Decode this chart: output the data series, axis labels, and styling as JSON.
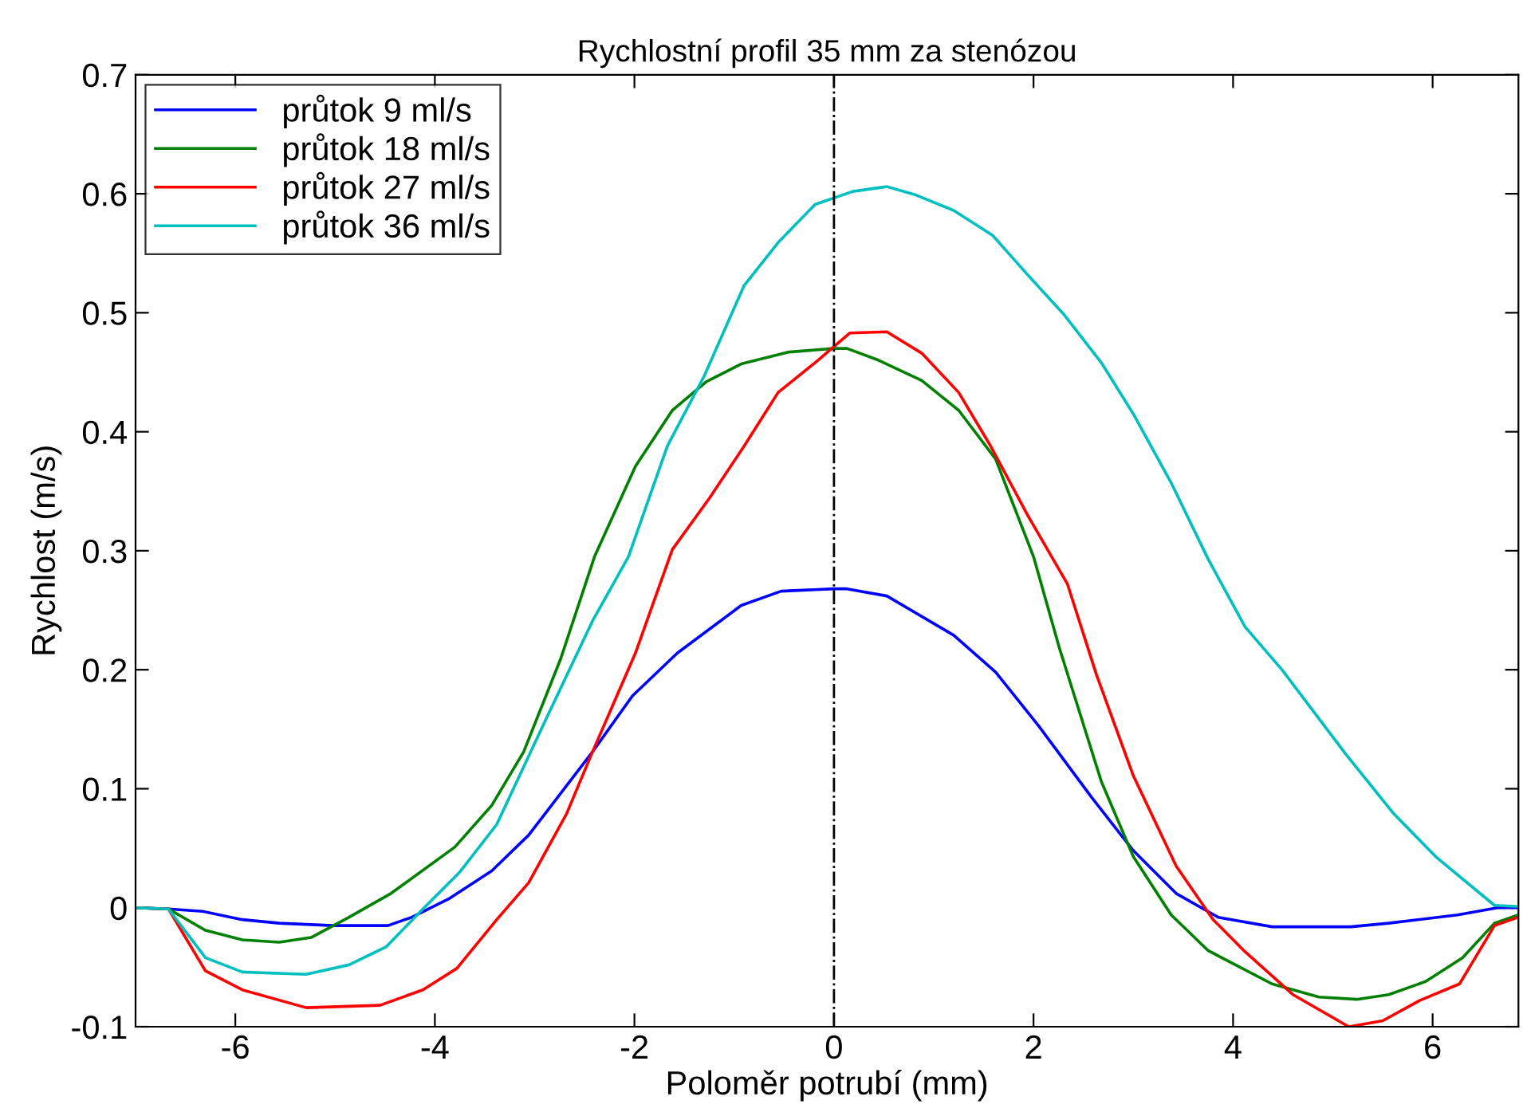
{
  "chart_data": {
    "type": "line",
    "title": "Rychlostní profil 35 mm za stenózou",
    "xlabel": "Poloměr potrubí (mm)",
    "ylabel": "Rychlost (m/s)",
    "xlim": [
      -7,
      6.86
    ],
    "ylim": [
      -0.1,
      0.7
    ],
    "xticks": [
      -6,
      -4,
      -2,
      0,
      2,
      4,
      6
    ],
    "yticks": [
      -0.1,
      0,
      0.1,
      0.2,
      0.3,
      0.4,
      0.5,
      0.6,
      0.7
    ],
    "grid": false,
    "legend": "top left",
    "line_style": "solid",
    "marker": "none",
    "ref_lines": [
      {
        "axis": "x",
        "value": 0,
        "color": "#000000",
        "line_style": "dashdot"
      }
    ],
    "series": [
      {
        "name": "průtok 9 ml/s",
        "color": "#0000ff",
        "x": [
          -7,
          -6.67,
          -6.33,
          -5.93,
          -5.56,
          -5.02,
          -4.47,
          -4.23,
          -3.85,
          -3.43,
          -3.06,
          -2.42,
          -2.02,
          -1.57,
          -0.93,
          -0.53,
          0,
          0.13,
          0.53,
          1.2,
          1.62,
          2.05,
          2.58,
          3.0,
          3.43,
          3.85,
          4.39,
          5.18,
          5.56,
          6.25,
          6.65,
          6.86
        ],
        "values": [
          0,
          -0.001,
          -0.003,
          -0.01,
          -0.013,
          -0.015,
          -0.015,
          -0.008,
          0.008,
          0.031,
          0.061,
          0.131,
          0.178,
          0.214,
          0.254,
          0.266,
          0.268,
          0.268,
          0.262,
          0.229,
          0.198,
          0.153,
          0.093,
          0.048,
          0.012,
          -0.008,
          -0.016,
          -0.016,
          -0.013,
          -0.006,
          0,
          0
        ]
      },
      {
        "name": "průtok 18 ml/s",
        "color": "#008000",
        "x": [
          -7,
          -6.67,
          -6.3,
          -5.93,
          -5.56,
          -5.24,
          -4.86,
          -4.44,
          -3.8,
          -3.43,
          -3.11,
          -2.74,
          -2.4,
          -1.99,
          -1.62,
          -1.28,
          -0.93,
          -0.45,
          0,
          0.13,
          0.45,
          0.88,
          1.25,
          1.62,
          2.0,
          2.26,
          2.68,
          3.0,
          3.38,
          3.75,
          4.39,
          4.86,
          5.24,
          5.56,
          5.93,
          6.3,
          6.62,
          6.86
        ],
        "values": [
          0,
          -0.001,
          -0.019,
          -0.027,
          -0.029,
          -0.025,
          -0.008,
          0.012,
          0.051,
          0.086,
          0.131,
          0.209,
          0.295,
          0.371,
          0.418,
          0.442,
          0.457,
          0.467,
          0.47,
          0.47,
          0.46,
          0.443,
          0.418,
          0.377,
          0.295,
          0.218,
          0.106,
          0.043,
          -0.006,
          -0.036,
          -0.064,
          -0.075,
          -0.077,
          -0.073,
          -0.062,
          -0.042,
          -0.013,
          -0.006
        ]
      },
      {
        "name": "průtok 27 ml/s",
        "color": "#ff0000",
        "x": [
          -7,
          -6.67,
          -6.3,
          -5.93,
          -5.29,
          -4.55,
          -4.12,
          -3.78,
          -3.38,
          -3.06,
          -2.68,
          -2.42,
          -1.99,
          -1.62,
          -1.25,
          -0.9,
          -0.56,
          -0.19,
          0.16,
          0.53,
          0.88,
          1.25,
          1.57,
          1.94,
          2.34,
          2.63,
          3.0,
          3.43,
          3.8,
          4.12,
          4.6,
          5.16,
          5.5,
          5.87,
          6.27,
          6.62,
          6.86
        ],
        "values": [
          0,
          -0.001,
          -0.053,
          -0.069,
          -0.084,
          -0.082,
          -0.069,
          -0.051,
          -0.01,
          0.021,
          0.079,
          0.131,
          0.214,
          0.301,
          0.344,
          0.388,
          0.433,
          0.458,
          0.483,
          0.484,
          0.466,
          0.433,
          0.388,
          0.33,
          0.272,
          0.196,
          0.111,
          0.035,
          -0.01,
          -0.037,
          -0.073,
          -0.1,
          -0.095,
          -0.078,
          -0.064,
          -0.015,
          -0.008
        ]
      },
      {
        "name": "průtok 36 ml/s",
        "color": "#00bfbf",
        "x": [
          -7,
          -6.67,
          -6.3,
          -5.93,
          -5.29,
          -4.86,
          -4.49,
          -4.12,
          -3.75,
          -3.38,
          -2.9,
          -2.42,
          -2.06,
          -1.67,
          -1.3,
          -0.9,
          -0.56,
          -0.19,
          0.19,
          0.53,
          0.82,
          1.2,
          1.59,
          1.94,
          2.31,
          2.68,
          3.0,
          3.38,
          3.75,
          4.12,
          4.49,
          5.13,
          5.61,
          6.03,
          6.62,
          6.86
        ],
        "values": [
          0,
          -0.001,
          -0.042,
          -0.054,
          -0.056,
          -0.048,
          -0.033,
          -0.001,
          0.03,
          0.07,
          0.156,
          0.241,
          0.295,
          0.388,
          0.447,
          0.523,
          0.559,
          0.591,
          0.602,
          0.606,
          0.599,
          0.586,
          0.565,
          0.532,
          0.498,
          0.458,
          0.415,
          0.357,
          0.293,
          0.236,
          0.2,
          0.129,
          0.079,
          0.043,
          0.002,
          0.001
        ]
      }
    ]
  }
}
